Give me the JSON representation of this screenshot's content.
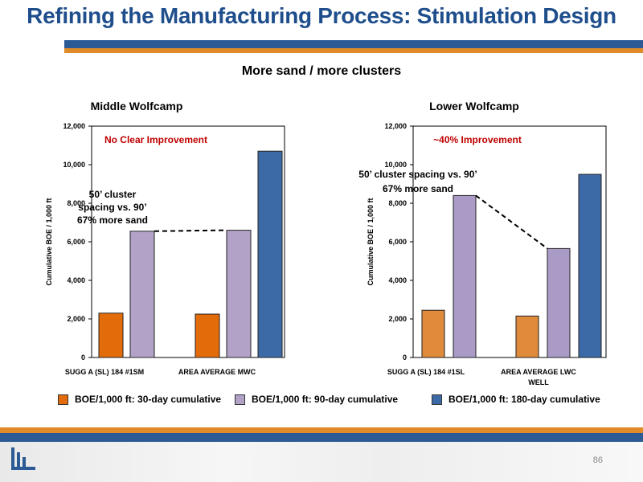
{
  "slide": {
    "title": "Refining the Manufacturing Process: Stimulation Design",
    "subtitle": "More sand / more clusters",
    "page_number": "86"
  },
  "colors": {
    "title_blue": "#1f4e8c",
    "bar_blue": "#2b5a94",
    "bar_orange": "#e08a2a",
    "series_30": "#e36c0a",
    "series_90": "#b3a2c7",
    "series_180": "#3c6aa6",
    "annotation_red": "#c00000"
  },
  "legend": [
    {
      "label": "BOE/1,000 ft: 30-day cumulative",
      "color": "#e36c0a"
    },
    {
      "label": "BOE/1,000 ft: 90-day cumulative",
      "color": "#b3a2c7"
    },
    {
      "label": "BOE/1,000 ft: 180-day cumulative",
      "color": "#3c6aa6"
    }
  ],
  "chart_data": [
    {
      "type": "bar",
      "title": "Middle Wolfcamp",
      "ylabel": "Cumulative BOE / 1,000 ft",
      "ylim": [
        0,
        12000
      ],
      "yticks": [
        "0",
        "2,000",
        "4,000",
        "6,000",
        "8,000",
        "10,000",
        "12,000"
      ],
      "grid": false,
      "categories": [
        "SUGG A (SL) 184 #1SM",
        "AREA AVERAGE MWC"
      ],
      "series": [
        {
          "name": "BOE/1,000 ft: 30-day cumulative",
          "color": "#e36c0a",
          "values": [
            2300,
            2250
          ]
        },
        {
          "name": "BOE/1,000 ft: 90-day cumulative",
          "color": "#b3a2c7",
          "values": [
            6550,
            6600
          ]
        },
        {
          "name": "BOE/1,000 ft: 180-day cumulative",
          "color": "#3c6aa6",
          "values": [
            null,
            10700
          ]
        }
      ],
      "headline": "No Clear Improvement",
      "annotation": [
        "50’ cluster",
        "spacing vs. 90’",
        "67% more sand"
      ]
    },
    {
      "type": "bar",
      "title": "Lower Wolfcamp",
      "ylabel": "Cumulative BOE / 1,000 ft",
      "ylim": [
        0,
        12000
      ],
      "yticks": [
        "0",
        "2,000",
        "4,000",
        "6,000",
        "8,000",
        "10,000",
        "12,000"
      ],
      "grid": false,
      "categories": [
        "SUGG A (SL) 184 #1SL",
        "AREA AVERAGE LWC WELL"
      ],
      "series": [
        {
          "name": "BOE/1,000 ft: 30-day cumulative",
          "color": "#e08a3c",
          "values": [
            2450,
            2150
          ]
        },
        {
          "name": "BOE/1,000 ft: 90-day cumulative",
          "color": "#a99bc6",
          "values": [
            8400,
            5650
          ]
        },
        {
          "name": "BOE/1,000 ft: 180-day cumulative",
          "color": "#3c6aa6",
          "values": [
            null,
            9500
          ]
        }
      ],
      "headline": "~40% Improvement",
      "annotation": [
        "50’ cluster spacing vs. 90’",
        "67% more sand"
      ]
    }
  ]
}
